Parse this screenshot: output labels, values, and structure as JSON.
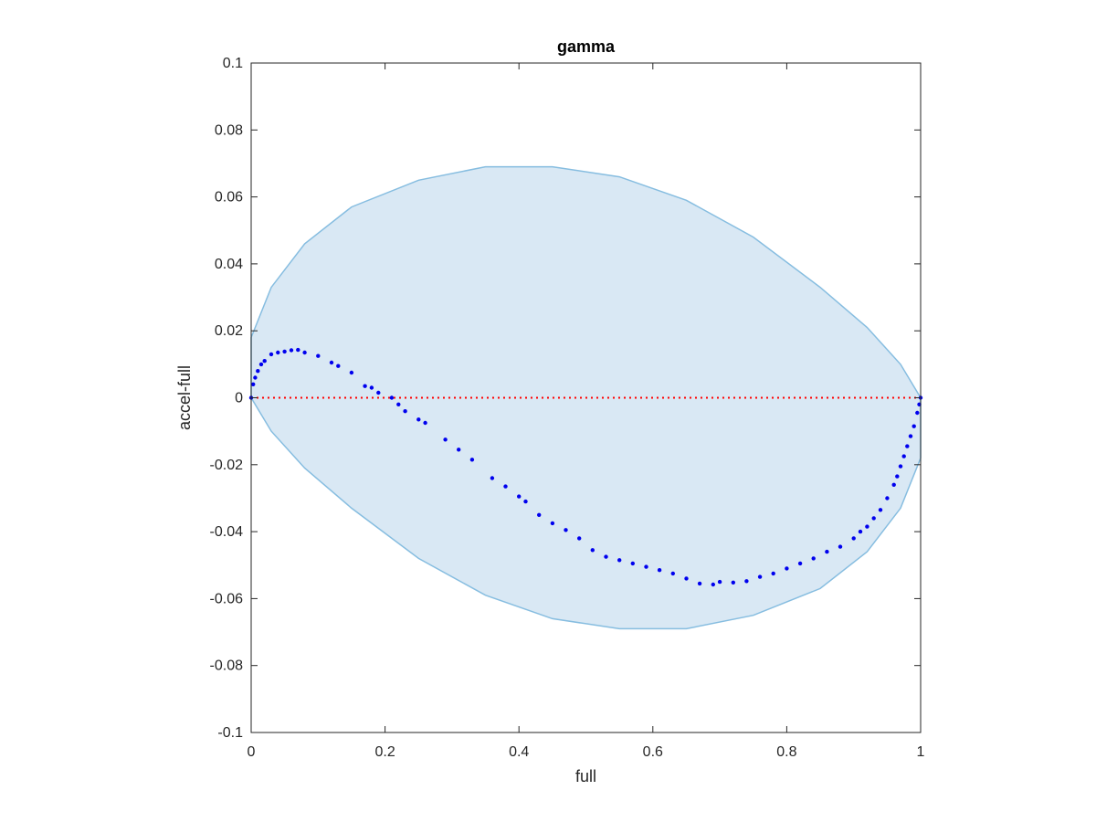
{
  "chart_data": {
    "type": "scatter",
    "title": "gamma",
    "xlabel": "full",
    "ylabel": "accel-full",
    "xlim": [
      0,
      1
    ],
    "ylim": [
      -0.1,
      0.1
    ],
    "xticks": [
      0,
      0.2,
      0.4,
      0.6,
      0.8,
      1
    ],
    "xtick_labels": [
      "0",
      "0.2",
      "0.4",
      "0.6",
      "0.8",
      "1"
    ],
    "yticks": [
      0.1,
      0.08,
      0.06,
      0.04,
      0.02,
      0,
      -0.02,
      -0.04,
      -0.06,
      -0.08,
      -0.1
    ],
    "ytick_labels": [
      "0.1",
      "0.08",
      "0.06",
      "0.04",
      "0.02",
      "0",
      "-0.02",
      "-0.04",
      "-0.06",
      "-0.08",
      "-0.1"
    ],
    "grid": false,
    "reference_line": {
      "y": 0,
      "color": "#ff0000",
      "style": "dotted"
    },
    "confidence_region": {
      "shape": "ellipse",
      "fill": "#d9e8f4",
      "edge": "#86bde0",
      "boundary": [
        [
          0.0,
          0.018
        ],
        [
          0.03,
          0.033
        ],
        [
          0.08,
          0.046
        ],
        [
          0.15,
          0.057
        ],
        [
          0.25,
          0.065
        ],
        [
          0.35,
          0.069
        ],
        [
          0.45,
          0.069
        ],
        [
          0.55,
          0.066
        ],
        [
          0.65,
          0.059
        ],
        [
          0.75,
          0.048
        ],
        [
          0.85,
          0.033
        ],
        [
          0.92,
          0.021
        ],
        [
          0.97,
          0.01
        ],
        [
          1.0,
          0.0
        ],
        [
          1.0,
          -0.018
        ],
        [
          0.97,
          -0.033
        ],
        [
          0.92,
          -0.046
        ],
        [
          0.85,
          -0.057
        ],
        [
          0.75,
          -0.065
        ],
        [
          0.65,
          -0.069
        ],
        [
          0.55,
          -0.069
        ],
        [
          0.45,
          -0.066
        ],
        [
          0.35,
          -0.059
        ],
        [
          0.25,
          -0.048
        ],
        [
          0.15,
          -0.033
        ],
        [
          0.08,
          -0.021
        ],
        [
          0.03,
          -0.01
        ],
        [
          0.0,
          0.0
        ]
      ]
    },
    "series": [
      {
        "color": "#0000ee",
        "points": [
          [
            0.0,
            0.0
          ],
          [
            0.003,
            0.004
          ],
          [
            0.006,
            0.006
          ],
          [
            0.01,
            0.008
          ],
          [
            0.015,
            0.01
          ],
          [
            0.02,
            0.011
          ],
          [
            0.03,
            0.013
          ],
          [
            0.04,
            0.0135
          ],
          [
            0.05,
            0.0138
          ],
          [
            0.06,
            0.0142
          ],
          [
            0.07,
            0.0143
          ],
          [
            0.08,
            0.0135
          ],
          [
            0.1,
            0.0125
          ],
          [
            0.12,
            0.0105
          ],
          [
            0.13,
            0.0095
          ],
          [
            0.15,
            0.0075
          ],
          [
            0.17,
            0.0035
          ],
          [
            0.18,
            0.003
          ],
          [
            0.19,
            0.0015
          ],
          [
            0.21,
            0.0
          ],
          [
            0.22,
            -0.002
          ],
          [
            0.23,
            -0.004
          ],
          [
            0.25,
            -0.0065
          ],
          [
            0.26,
            -0.0075
          ],
          [
            0.29,
            -0.0125
          ],
          [
            0.31,
            -0.0155
          ],
          [
            0.33,
            -0.0185
          ],
          [
            0.36,
            -0.024
          ],
          [
            0.38,
            -0.0265
          ],
          [
            0.4,
            -0.0295
          ],
          [
            0.41,
            -0.031
          ],
          [
            0.43,
            -0.035
          ],
          [
            0.45,
            -0.0375
          ],
          [
            0.47,
            -0.0395
          ],
          [
            0.49,
            -0.042
          ],
          [
            0.51,
            -0.0455
          ],
          [
            0.53,
            -0.0475
          ],
          [
            0.55,
            -0.0485
          ],
          [
            0.57,
            -0.0495
          ],
          [
            0.59,
            -0.0505
          ],
          [
            0.61,
            -0.0515
          ],
          [
            0.63,
            -0.0525
          ],
          [
            0.65,
            -0.054
          ],
          [
            0.67,
            -0.0555
          ],
          [
            0.69,
            -0.0558
          ],
          [
            0.7,
            -0.055
          ],
          [
            0.72,
            -0.0552
          ],
          [
            0.74,
            -0.0548
          ],
          [
            0.76,
            -0.0535
          ],
          [
            0.78,
            -0.0525
          ],
          [
            0.8,
            -0.051
          ],
          [
            0.82,
            -0.0495
          ],
          [
            0.84,
            -0.048
          ],
          [
            0.86,
            -0.046
          ],
          [
            0.88,
            -0.0445
          ],
          [
            0.9,
            -0.042
          ],
          [
            0.91,
            -0.04
          ],
          [
            0.92,
            -0.0385
          ],
          [
            0.93,
            -0.036
          ],
          [
            0.94,
            -0.0335
          ],
          [
            0.95,
            -0.03
          ],
          [
            0.96,
            -0.026
          ],
          [
            0.965,
            -0.0235
          ],
          [
            0.97,
            -0.0205
          ],
          [
            0.975,
            -0.0175
          ],
          [
            0.98,
            -0.0145
          ],
          [
            0.985,
            -0.0115
          ],
          [
            0.99,
            -0.0085
          ],
          [
            0.995,
            -0.0045
          ],
          [
            0.998,
            -0.002
          ],
          [
            1.0,
            0.0
          ]
        ]
      }
    ]
  }
}
